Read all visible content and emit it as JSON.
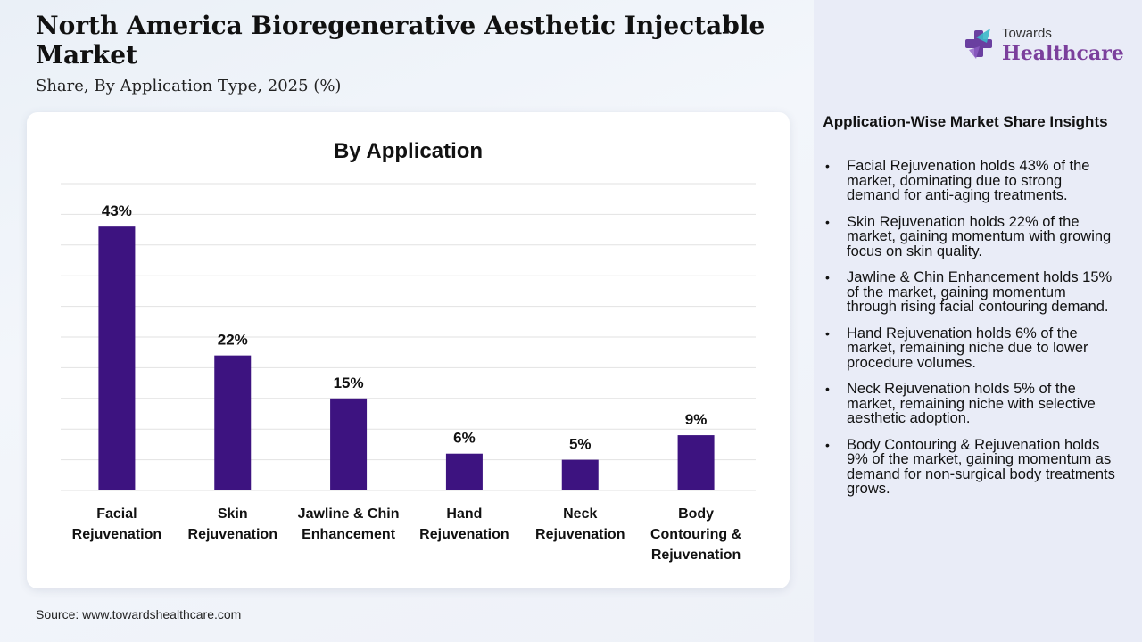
{
  "header": {
    "title": "North America Bioregenerative Aesthetic Injectable Market",
    "subtitle": "Share, By Application Type, 2025 (%)"
  },
  "logo": {
    "top": "Towards",
    "bottom": "Healthcare",
    "colors": {
      "purple": "#7b3f9c",
      "cross_purple": "#6a3fa0",
      "cross_teal": "#3bb8c8"
    }
  },
  "source": "Source: www.towardshealthcare.com",
  "insights": {
    "title": "Application-Wise Market Share Insights",
    "items": [
      "Facial Rejuvenation holds 43% of the market, dominating due to strong demand for anti-aging treatments.",
      "Skin Rejuvenation holds 22% of the market, gaining momentum with growing focus on skin quality.",
      "Jawline & Chin Enhancement holds 15% of the market, gaining momentum through rising facial contouring demand.",
      "Hand Rejuvenation holds 6% of the market, remaining niche due to lower procedure volumes.",
      "Neck Rejuvenation holds 5% of the market, remaining niche with selective aesthetic adoption.",
      "Body Contouring & Rejuvenation holds 9% of the market, gaining momentum as demand for non-surgical body treatments grows."
    ]
  },
  "chart_data": {
    "type": "bar",
    "title": "By Application",
    "categories": [
      [
        "Facial",
        "Rejuvenation"
      ],
      [
        "Skin",
        "Rejuvenation"
      ],
      [
        "Jawline & Chin",
        "Enhancement"
      ],
      [
        "Hand",
        "Rejuvenation"
      ],
      [
        "Neck",
        "Rejuvenation"
      ],
      [
        "Body",
        "Contouring &",
        "Rejuvenation"
      ]
    ],
    "values": [
      43,
      22,
      15,
      6,
      5,
      9
    ],
    "value_labels": [
      "43%",
      "22%",
      "15%",
      "6%",
      "5%",
      "9%"
    ],
    "ylim": [
      0,
      50
    ],
    "grid": true,
    "bar_color": "#3d1380",
    "grid_color": "#e2e2e2"
  }
}
